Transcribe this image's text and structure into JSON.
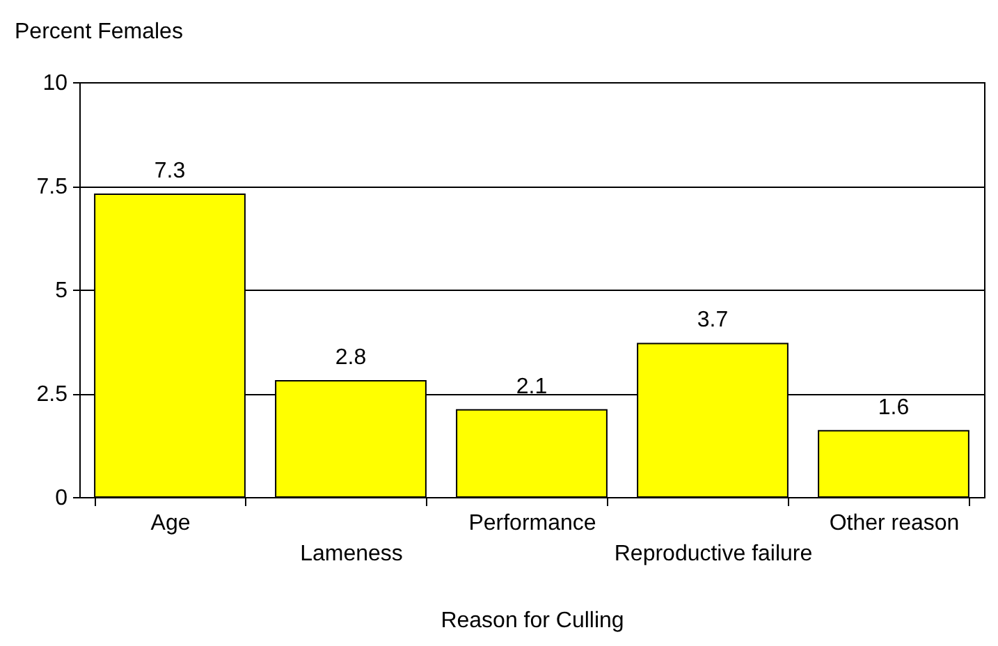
{
  "chart_data": {
    "type": "bar",
    "xlabel": "Reason for Culling",
    "ylabel": "Percent Females",
    "categories": [
      "Age",
      "Lameness",
      "Performance",
      "Reproductive failure",
      "Other reason"
    ],
    "values": [
      7.3,
      2.8,
      2.1,
      3.7,
      1.6
    ],
    "color": "#ffff00",
    "ylim": [
      0,
      10
    ],
    "yticks": [
      0,
      2.5,
      5,
      7.5,
      10
    ],
    "grid": "y",
    "data_labels": true
  }
}
